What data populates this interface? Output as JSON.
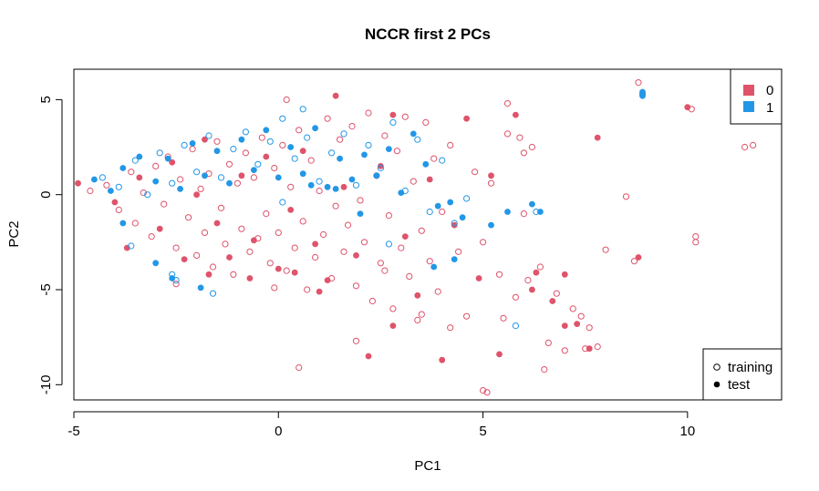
{
  "chart_data": {
    "type": "scatter",
    "title": "NCCR first 2 PCs",
    "xlabel": "PC1",
    "ylabel": "PC2",
    "xlim": [
      -5,
      12.3
    ],
    "ylim": [
      -10.8,
      6.6
    ],
    "xticks": [
      -5,
      0,
      5,
      10
    ],
    "yticks": [
      -10,
      -5,
      0,
      5
    ],
    "xtick_labels": [
      "-5",
      "0",
      "5",
      "10"
    ],
    "ytick_labels": [
      "-10",
      "-5",
      "0",
      "5"
    ],
    "grid": false,
    "legend_class": {
      "position": "top-right",
      "entries": [
        {
          "label": "0",
          "color": "#DF536B"
        },
        {
          "label": "1",
          "color": "#2297E6"
        }
      ]
    },
    "legend_set": {
      "position": "bottom-right",
      "entries": [
        {
          "label": "training",
          "marker": "open-circle"
        },
        {
          "label": "test",
          "marker": "filled-circle"
        }
      ]
    },
    "series": [
      {
        "name": "0",
        "color": "#DF536B",
        "set": "training",
        "points": [
          [
            -4.6,
            0.2
          ],
          [
            -4.2,
            0.5
          ],
          [
            -3.9,
            -0.8
          ],
          [
            -3.6,
            1.2
          ],
          [
            -3.5,
            -1.5
          ],
          [
            -3.3,
            0.1
          ],
          [
            -3.1,
            -2.2
          ],
          [
            -3.0,
            1.5
          ],
          [
            -2.8,
            -0.5
          ],
          [
            -2.7,
            2.0
          ],
          [
            -2.5,
            -2.8
          ],
          [
            -2.4,
            0.8
          ],
          [
            -2.2,
            -1.2
          ],
          [
            -2.1,
            2.4
          ],
          [
            -2.0,
            -3.2
          ],
          [
            -1.9,
            0.3
          ],
          [
            -1.8,
            -2.0
          ],
          [
            -1.7,
            1.1
          ],
          [
            -1.6,
            -3.8
          ],
          [
            -1.5,
            2.8
          ],
          [
            -1.4,
            -0.7
          ],
          [
            -1.3,
            -2.6
          ],
          [
            -1.2,
            1.6
          ],
          [
            -1.1,
            -4.2
          ],
          [
            -1.0,
            0.6
          ],
          [
            -0.9,
            -1.8
          ],
          [
            -0.8,
            2.2
          ],
          [
            -0.7,
            -3.0
          ],
          [
            -0.6,
            0.9
          ],
          [
            -0.5,
            -2.3
          ],
          [
            -0.4,
            3.0
          ],
          [
            -0.3,
            -1.0
          ],
          [
            -0.2,
            -3.6
          ],
          [
            -0.1,
            1.4
          ],
          [
            0.0,
            -2.0
          ],
          [
            0.1,
            2.6
          ],
          [
            0.2,
            -4.0
          ],
          [
            0.3,
            0.4
          ],
          [
            0.4,
            -2.8
          ],
          [
            0.5,
            3.4
          ],
          [
            0.6,
            -1.4
          ],
          [
            0.7,
            -5.0
          ],
          [
            0.8,
            1.8
          ],
          [
            0.9,
            -3.3
          ],
          [
            1.0,
            0.2
          ],
          [
            1.1,
            -2.1
          ],
          [
            1.2,
            4.0
          ],
          [
            1.3,
            -4.4
          ],
          [
            1.4,
            -0.6
          ],
          [
            1.5,
            2.9
          ],
          [
            1.6,
            -3.0
          ],
          [
            1.7,
            -1.6
          ],
          [
            1.8,
            3.6
          ],
          [
            1.9,
            -4.8
          ],
          [
            2.0,
            -0.3
          ],
          [
            2.1,
            -2.5
          ],
          [
            2.2,
            4.3
          ],
          [
            2.3,
            -5.6
          ],
          [
            2.4,
            1.0
          ],
          [
            2.5,
            -3.6
          ],
          [
            2.6,
            3.1
          ],
          [
            2.7,
            -1.1
          ],
          [
            2.8,
            -6.0
          ],
          [
            2.9,
            2.3
          ],
          [
            3.0,
            -2.8
          ],
          [
            3.1,
            4.1
          ],
          [
            3.2,
            -4.3
          ],
          [
            3.3,
            0.7
          ],
          [
            3.4,
            -6.6
          ],
          [
            3.5,
            -1.9
          ],
          [
            3.6,
            3.8
          ],
          [
            3.7,
            -3.5
          ],
          [
            3.8,
            1.9
          ],
          [
            3.9,
            -5.1
          ],
          [
            4.0,
            -0.9
          ],
          [
            4.2,
            2.6
          ],
          [
            4.4,
            -3.0
          ],
          [
            4.6,
            -6.4
          ],
          [
            4.8,
            1.2
          ],
          [
            5.0,
            -2.5
          ],
          [
            5.2,
            0.6
          ],
          [
            5.4,
            -4.2
          ],
          [
            5.6,
            3.2
          ],
          [
            5.8,
            -5.4
          ],
          [
            6.0,
            -1.0
          ],
          [
            6.2,
            2.5
          ],
          [
            6.4,
            -3.8
          ],
          [
            6.6,
            -7.8
          ],
          [
            6.8,
            -5.2
          ],
          [
            7.0,
            -8.2
          ],
          [
            7.2,
            -6.0
          ],
          [
            7.4,
            -6.4
          ],
          [
            7.6,
            -7.0
          ],
          [
            7.8,
            -8.0
          ],
          [
            8.0,
            -2.9
          ],
          [
            8.5,
            -0.1
          ],
          [
            8.7,
            -3.5
          ],
          [
            8.8,
            5.9
          ],
          [
            10.1,
            4.5
          ],
          [
            10.2,
            -2.2
          ],
          [
            10.2,
            -2.5
          ],
          [
            11.4,
            2.5
          ],
          [
            11.6,
            2.6
          ],
          [
            0.5,
            -9.1
          ],
          [
            5.0,
            -10.3
          ],
          [
            5.1,
            -10.4
          ],
          [
            5.5,
            -6.5
          ],
          [
            6.1,
            -4.5
          ],
          [
            6.5,
            -9.2
          ],
          [
            7.5,
            -8.1
          ],
          [
            1.9,
            -7.7
          ],
          [
            3.5,
            -6.3
          ],
          [
            4.2,
            -7.0
          ],
          [
            5.6,
            4.8
          ],
          [
            5.9,
            3.0
          ],
          [
            6.0,
            2.2
          ],
          [
            2.6,
            -4.0
          ],
          [
            0.2,
            5.0
          ],
          [
            -0.1,
            -4.9
          ],
          [
            -2.5,
            -4.7
          ]
        ]
      },
      {
        "name": "0",
        "color": "#DF536B",
        "set": "test",
        "points": [
          [
            -4.9,
            0.6
          ],
          [
            -4.0,
            -0.4
          ],
          [
            -3.7,
            -2.8
          ],
          [
            -3.4,
            0.9
          ],
          [
            -2.9,
            -1.8
          ],
          [
            -2.6,
            1.7
          ],
          [
            -2.3,
            -3.4
          ],
          [
            -2.0,
            0.0
          ],
          [
            -1.8,
            2.9
          ],
          [
            -1.5,
            -1.5
          ],
          [
            -1.2,
            -3.3
          ],
          [
            -0.9,
            1.0
          ],
          [
            -0.6,
            -2.4
          ],
          [
            -0.3,
            2.0
          ],
          [
            0.0,
            -3.9
          ],
          [
            0.3,
            -0.8
          ],
          [
            0.6,
            2.3
          ],
          [
            0.9,
            -2.6
          ],
          [
            1.2,
            -4.5
          ],
          [
            1.4,
            5.2
          ],
          [
            1.6,
            0.4
          ],
          [
            1.9,
            -3.2
          ],
          [
            2.2,
            -8.5
          ],
          [
            2.5,
            1.5
          ],
          [
            2.8,
            4.2
          ],
          [
            3.1,
            -2.2
          ],
          [
            3.4,
            -5.3
          ],
          [
            3.7,
            0.8
          ],
          [
            4.0,
            -8.7
          ],
          [
            4.3,
            -1.6
          ],
          [
            4.6,
            4.0
          ],
          [
            4.9,
            -4.4
          ],
          [
            5.2,
            1.0
          ],
          [
            5.4,
            -8.4
          ],
          [
            5.8,
            4.2
          ],
          [
            6.2,
            -5.0
          ],
          [
            6.7,
            -5.6
          ],
          [
            7.0,
            -6.9
          ],
          [
            7.3,
            -6.8
          ],
          [
            7.6,
            -8.1
          ],
          [
            7.8,
            3.0
          ],
          [
            8.8,
            -3.3
          ],
          [
            10.0,
            4.6
          ],
          [
            -1.7,
            -4.2
          ],
          [
            -0.7,
            -4.4
          ],
          [
            0.4,
            -4.1
          ],
          [
            1.0,
            -5.1
          ],
          [
            2.8,
            -6.9
          ],
          [
            6.3,
            -4.1
          ],
          [
            7.0,
            -4.2
          ]
        ]
      },
      {
        "name": "1",
        "color": "#2297E6",
        "set": "training",
        "points": [
          [
            -4.3,
            0.9
          ],
          [
            -3.9,
            0.4
          ],
          [
            -3.5,
            1.8
          ],
          [
            -3.2,
            0.0
          ],
          [
            -2.9,
            2.2
          ],
          [
            -2.6,
            0.6
          ],
          [
            -2.3,
            2.6
          ],
          [
            -2.0,
            1.2
          ],
          [
            -1.7,
            3.1
          ],
          [
            -1.4,
            0.9
          ],
          [
            -1.1,
            2.4
          ],
          [
            -0.8,
            3.3
          ],
          [
            -0.5,
            1.6
          ],
          [
            -0.2,
            2.8
          ],
          [
            0.1,
            4.0
          ],
          [
            0.4,
            1.9
          ],
          [
            0.7,
            3.0
          ],
          [
            1.0,
            0.7
          ],
          [
            1.3,
            2.2
          ],
          [
            1.6,
            3.2
          ],
          [
            1.9,
            0.5
          ],
          [
            2.2,
            2.6
          ],
          [
            2.5,
            1.4
          ],
          [
            2.8,
            3.8
          ],
          [
            3.1,
            0.2
          ],
          [
            3.4,
            2.9
          ],
          [
            3.7,
            -0.9
          ],
          [
            4.0,
            1.8
          ],
          [
            4.3,
            -1.5
          ],
          [
            4.6,
            -0.2
          ],
          [
            -2.5,
            -4.5
          ],
          [
            -2.6,
            -4.2
          ],
          [
            -1.6,
            -5.2
          ],
          [
            -3.6,
            -2.7
          ],
          [
            0.1,
            -0.4
          ],
          [
            0.6,
            4.5
          ],
          [
            2.7,
            -2.6
          ],
          [
            5.8,
            -6.9
          ],
          [
            8.9,
            5.3
          ],
          [
            6.3,
            -0.9
          ]
        ]
      },
      {
        "name": "1",
        "color": "#2297E6",
        "set": "test",
        "points": [
          [
            -4.5,
            0.8
          ],
          [
            -4.1,
            0.2
          ],
          [
            -3.8,
            1.4
          ],
          [
            -3.4,
            2.0
          ],
          [
            -3.0,
            0.7
          ],
          [
            -2.7,
            1.9
          ],
          [
            -2.4,
            0.3
          ],
          [
            -2.1,
            2.7
          ],
          [
            -1.8,
            1.0
          ],
          [
            -1.5,
            2.3
          ],
          [
            -1.2,
            0.6
          ],
          [
            -0.9,
            2.9
          ],
          [
            -0.6,
            1.3
          ],
          [
            -0.3,
            3.4
          ],
          [
            0.0,
            0.9
          ],
          [
            0.3,
            2.5
          ],
          [
            0.6,
            1.1
          ],
          [
            0.9,
            3.5
          ],
          [
            1.2,
            0.4
          ],
          [
            1.5,
            1.9
          ],
          [
            1.8,
            0.8
          ],
          [
            2.1,
            2.1
          ],
          [
            2.4,
            1.0
          ],
          [
            2.7,
            2.4
          ],
          [
            3.0,
            0.1
          ],
          [
            3.3,
            3.2
          ],
          [
            3.6,
            1.6
          ],
          [
            3.9,
            -0.6
          ],
          [
            4.2,
            -0.4
          ],
          [
            4.5,
            -1.2
          ],
          [
            -3.0,
            -3.6
          ],
          [
            -2.6,
            -4.4
          ],
          [
            -1.9,
            -4.9
          ],
          [
            -3.8,
            -1.5
          ],
          [
            2.0,
            -1.0
          ],
          [
            4.3,
            -3.4
          ],
          [
            5.2,
            -1.6
          ],
          [
            5.6,
            -0.9
          ],
          [
            6.2,
            -0.5
          ],
          [
            6.4,
            -0.9
          ],
          [
            8.9,
            5.4
          ],
          [
            8.9,
            5.2
          ],
          [
            3.8,
            -3.8
          ],
          [
            1.4,
            0.3
          ],
          [
            0.8,
            0.5
          ]
        ]
      }
    ]
  }
}
